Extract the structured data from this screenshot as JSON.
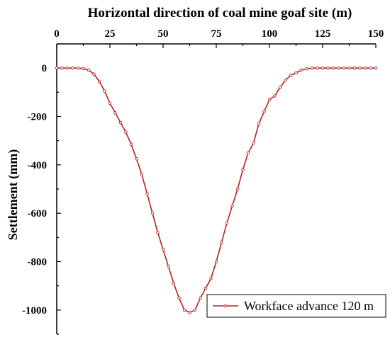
{
  "chart_data": {
    "type": "line",
    "title": "Horizontal direction of coal mine goaf site (m)",
    "xlabel": "Horizontal direction of coal mine goaf site (m)",
    "ylabel": "Settlement (mm)",
    "xlim": [
      0,
      150
    ],
    "ylim": [
      -1100,
      100
    ],
    "x_ticks": [
      0,
      25,
      50,
      75,
      100,
      125,
      150
    ],
    "y_ticks": [
      0,
      -200,
      -400,
      -600,
      -800,
      -1000
    ],
    "x_axis_position": "top",
    "grid": false,
    "legend_position": "bottom-right",
    "line_color": "#b22222",
    "series": [
      {
        "name": "Workface advance 120 m",
        "x": [
          0,
          2.5,
          5,
          7.5,
          10,
          12.5,
          15,
          17.5,
          20,
          22.5,
          25,
          27.5,
          30,
          32.5,
          35,
          37.5,
          40,
          42.5,
          45,
          47.5,
          50,
          52.5,
          55,
          57.5,
          60,
          62.5,
          65,
          67.5,
          70,
          72.5,
          75,
          77.5,
          80,
          82.5,
          85,
          87.5,
          90,
          92.5,
          95,
          97.5,
          100,
          102.5,
          105,
          107.5,
          110,
          112.5,
          115,
          117.5,
          120,
          122.5,
          125,
          127.5,
          130,
          132.5,
          135,
          137.5,
          140,
          142.5,
          145,
          147.5,
          150
        ],
        "values": [
          0,
          0,
          0,
          0,
          0,
          -2,
          -8,
          -25,
          -55,
          -95,
          -145,
          -185,
          -225,
          -265,
          -315,
          -375,
          -440,
          -520,
          -600,
          -680,
          -750,
          -820,
          -890,
          -950,
          -1000,
          -1010,
          -1000,
          -950,
          -910,
          -870,
          -800,
          -720,
          -640,
          -570,
          -500,
          -420,
          -350,
          -310,
          -230,
          -180,
          -130,
          -115,
          -80,
          -50,
          -30,
          -20,
          -8,
          -3,
          0,
          0,
          0,
          0,
          0,
          0,
          0,
          0,
          0,
          0,
          0,
          0,
          0
        ]
      }
    ]
  }
}
